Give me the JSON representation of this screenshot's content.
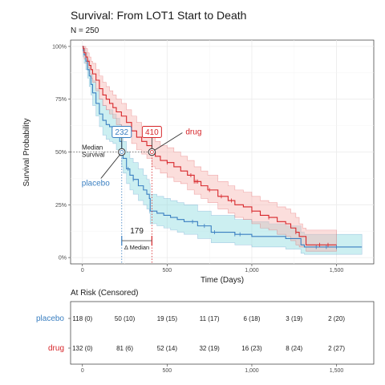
{
  "chart_data": {
    "type": "line",
    "title": "Survival: From LOT1 Start to Death",
    "subtitle": "N = 250",
    "xlabel": "Time (Days)",
    "ylabel": "Survival Probability",
    "xlim": [
      -70,
      1720
    ],
    "ylim": [
      -0.03,
      1.03
    ],
    "x_ticks": [
      0,
      500,
      1000,
      1500
    ],
    "x_tick_labels": [
      "0",
      "500",
      "1,000",
      "1,500"
    ],
    "y_ticks": [
      0,
      0.25,
      0.5,
      0.75,
      1.0
    ],
    "y_tick_labels": [
      "0%",
      "25%",
      "50%",
      "75%",
      "100%"
    ],
    "grid": true,
    "colors": {
      "placebo": "#3a7fc1",
      "drug": "#d7262a",
      "placebo_band": "#8fdbe0",
      "drug_band": "#f7b5b2"
    },
    "series": [
      {
        "name": "placebo",
        "x": [
          0,
          5,
          10,
          20,
          30,
          40,
          50,
          60,
          80,
          100,
          120,
          140,
          160,
          180,
          200,
          220,
          232,
          240,
          260,
          280,
          300,
          330,
          360,
          380,
          395,
          400,
          440,
          480,
          520,
          560,
          600,
          680,
          760,
          900,
          1000,
          1100,
          1200,
          1260,
          1290,
          1310,
          1400,
          1500,
          1650
        ],
        "y": [
          1.0,
          0.98,
          0.96,
          0.93,
          0.89,
          0.86,
          0.82,
          0.78,
          0.73,
          0.68,
          0.65,
          0.63,
          0.62,
          0.61,
          0.58,
          0.55,
          0.5,
          0.47,
          0.42,
          0.39,
          0.37,
          0.34,
          0.32,
          0.3,
          0.28,
          0.22,
          0.21,
          0.2,
          0.19,
          0.18,
          0.17,
          0.15,
          0.12,
          0.11,
          0.1,
          0.1,
          0.09,
          0.09,
          0.06,
          0.05,
          0.05,
          0.05,
          0.05
        ],
        "lower": [
          1.0,
          0.95,
          0.92,
          0.89,
          0.85,
          0.81,
          0.77,
          0.72,
          0.67,
          0.62,
          0.58,
          0.56,
          0.55,
          0.54,
          0.51,
          0.48,
          0.43,
          0.4,
          0.35,
          0.32,
          0.3,
          0.27,
          0.25,
          0.23,
          0.21,
          0.16,
          0.15,
          0.14,
          0.13,
          0.12,
          0.11,
          0.09,
          0.07,
          0.06,
          0.05,
          0.05,
          0.04,
          0.04,
          0.02,
          0.015,
          0.015,
          0.015,
          0.015
        ],
        "upper": [
          1.0,
          1.0,
          0.99,
          0.97,
          0.94,
          0.91,
          0.87,
          0.84,
          0.8,
          0.75,
          0.72,
          0.7,
          0.7,
          0.68,
          0.66,
          0.63,
          0.58,
          0.55,
          0.5,
          0.47,
          0.45,
          0.42,
          0.39,
          0.37,
          0.35,
          0.3,
          0.29,
          0.28,
          0.27,
          0.26,
          0.25,
          0.22,
          0.2,
          0.18,
          0.17,
          0.16,
          0.15,
          0.15,
          0.12,
          0.11,
          0.11,
          0.11,
          0.11
        ],
        "censor_x": [
          270,
          300,
          650,
          720,
          780,
          900,
          930,
          1380,
          1440,
          1500
        ]
      },
      {
        "name": "drug",
        "x": [
          0,
          5,
          10,
          20,
          30,
          40,
          50,
          60,
          80,
          100,
          120,
          140,
          160,
          180,
          200,
          230,
          260,
          290,
          320,
          350,
          380,
          410,
          430,
          460,
          500,
          540,
          580,
          620,
          660,
          700,
          740,
          800,
          860,
          900,
          950,
          1000,
          1050,
          1100,
          1150,
          1200,
          1230,
          1260,
          1280,
          1300,
          1320,
          1400,
          1500
        ],
        "y": [
          1.0,
          0.99,
          0.97,
          0.95,
          0.93,
          0.91,
          0.89,
          0.87,
          0.84,
          0.8,
          0.77,
          0.75,
          0.73,
          0.71,
          0.69,
          0.67,
          0.64,
          0.6,
          0.57,
          0.55,
          0.53,
          0.5,
          0.48,
          0.46,
          0.45,
          0.43,
          0.41,
          0.39,
          0.36,
          0.34,
          0.32,
          0.29,
          0.27,
          0.25,
          0.24,
          0.22,
          0.2,
          0.19,
          0.17,
          0.16,
          0.14,
          0.12,
          0.1,
          0.1,
          0.06,
          0.06,
          0.06
        ],
        "lower": [
          1.0,
          0.97,
          0.94,
          0.92,
          0.9,
          0.87,
          0.85,
          0.83,
          0.79,
          0.75,
          0.72,
          0.7,
          0.68,
          0.66,
          0.63,
          0.61,
          0.58,
          0.54,
          0.51,
          0.49,
          0.47,
          0.43,
          0.42,
          0.4,
          0.38,
          0.36,
          0.35,
          0.32,
          0.3,
          0.28,
          0.26,
          0.23,
          0.21,
          0.19,
          0.18,
          0.16,
          0.14,
          0.13,
          0.11,
          0.1,
          0.08,
          0.06,
          0.05,
          0.05,
          0.03,
          0.03,
          0.03
        ],
        "upper": [
          1.0,
          1.0,
          1.0,
          0.99,
          0.97,
          0.95,
          0.93,
          0.92,
          0.89,
          0.86,
          0.83,
          0.81,
          0.79,
          0.77,
          0.75,
          0.73,
          0.7,
          0.67,
          0.64,
          0.62,
          0.6,
          0.57,
          0.55,
          0.53,
          0.52,
          0.5,
          0.48,
          0.46,
          0.43,
          0.41,
          0.39,
          0.36,
          0.34,
          0.32,
          0.31,
          0.29,
          0.27,
          0.26,
          0.24,
          0.23,
          0.21,
          0.19,
          0.16,
          0.14,
          0.13,
          0.13,
          0.13
        ],
        "censor_x": [
          500,
          640,
          660,
          670,
          680,
          750,
          820,
          880,
          1000,
          1100,
          1260,
          1400,
          1450
        ]
      }
    ],
    "median": {
      "label": "Median\nSurvival",
      "placebo": 232,
      "drug": 410,
      "difference": 179,
      "difference_label": "Δ Median"
    },
    "risk_table": {
      "title": "At Risk (Censored)",
      "x": [
        0,
        250,
        500,
        750,
        1000,
        1250,
        1500
      ],
      "x_ticks": [
        0,
        500,
        1000,
        1500
      ],
      "x_tick_labels": [
        "0",
        "500",
        "1,000",
        "1,500"
      ],
      "rows": [
        {
          "name": "placebo",
          "cells": [
            "118 (0)",
            "50 (10)",
            "19 (15)",
            "11 (17)",
            "6 (18)",
            "3 (19)",
            "2 (20)"
          ]
        },
        {
          "name": "drug",
          "cells": [
            "132 (0)",
            "81 (6)",
            "52 (14)",
            "32 (19)",
            "16 (23)",
            "8 (24)",
            "2 (27)"
          ]
        }
      ]
    }
  }
}
